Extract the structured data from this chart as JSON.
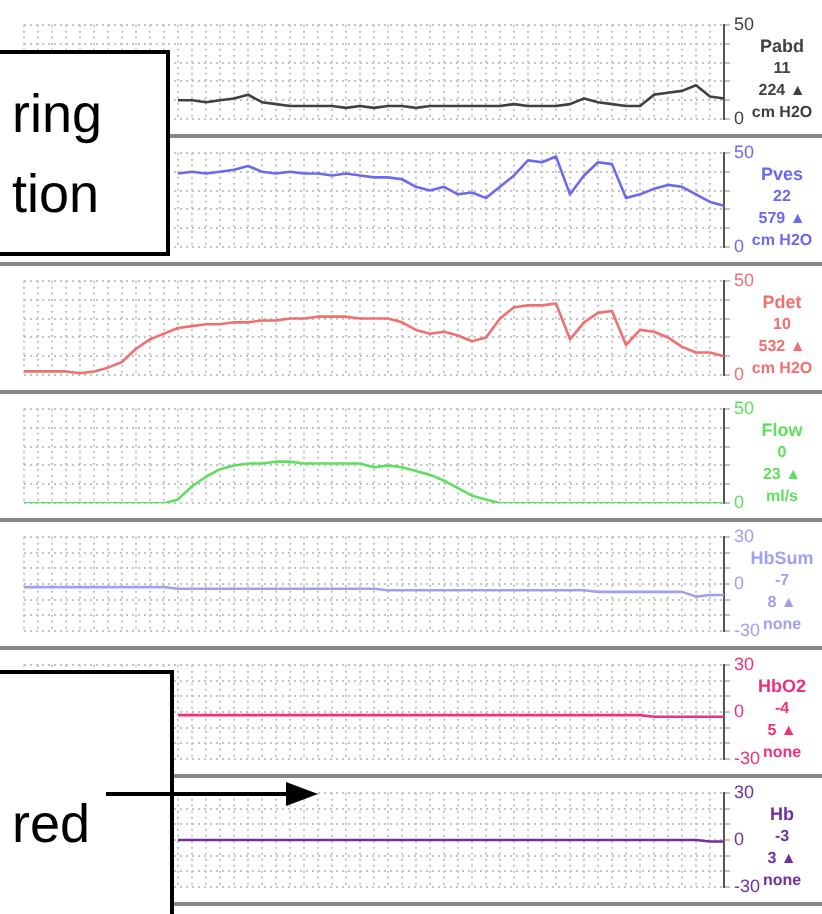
{
  "chart_data": [
    {
      "type": "line",
      "categories": [
        null,
        null,
        null,
        null,
        null,
        null,
        null,
        null,
        null,
        null,
        null,
        null,
        null,
        null,
        null,
        null,
        null,
        null,
        null,
        null,
        null,
        null,
        null,
        null,
        null,
        null,
        null,
        null,
        null,
        null,
        null,
        null,
        null,
        null,
        null,
        null,
        null,
        null,
        null,
        null,
        null,
        null,
        null,
        null,
        null,
        null,
        null,
        null,
        null,
        null,
        null
      ],
      "tick_labels": "y",
      "grid": true,
      "ylim": [
        0,
        50
      ],
      "yticks": [
        0,
        {
          "value": 10,
          "label": null
        },
        {
          "value": 20,
          "label": null
        },
        {
          "value": 30,
          "label": null
        },
        {
          "value": 40,
          "label": null
        },
        50
      ],
      "annotations": [
        "11",
        "224 ▲",
        "cm H2O",
        "ring",
        "tion"
      ],
      "series": [
        {
          "name": "Pabd",
          "color": "#404040",
          "values": [
            null,
            null,
            null,
            null,
            null,
            null,
            null,
            null,
            null,
            null,
            null,
            10,
            10,
            9,
            10,
            11,
            13,
            9,
            8,
            7,
            7,
            7,
            7,
            6,
            7,
            6,
            7,
            7,
            6,
            7,
            7,
            7,
            7,
            7,
            7,
            8,
            7,
            7,
            7,
            8,
            11,
            9,
            8,
            7,
            7,
            13,
            14,
            15,
            18,
            12,
            11
          ]
        }
      ]
    },
    {
      "type": "line",
      "categories": [
        null,
        null,
        null,
        null,
        null,
        null,
        null,
        null,
        null,
        null,
        null,
        null,
        null,
        null,
        null,
        null,
        null,
        null,
        null,
        null,
        null,
        null,
        null,
        null,
        null,
        null,
        null,
        null,
        null,
        null,
        null,
        null,
        null,
        null,
        null,
        null,
        null,
        null,
        null,
        null,
        null,
        null,
        null,
        null,
        null,
        null,
        null,
        null,
        null,
        null,
        null
      ],
      "tick_labels": "y",
      "grid": true,
      "ylim": [
        0,
        50
      ],
      "yticks": [
        0,
        {
          "value": 10,
          "label": null
        },
        {
          "value": 20,
          "label": null
        },
        {
          "value": 30,
          "label": null
        },
        {
          "value": 40,
          "label": null
        },
        50
      ],
      "annotations": [
        "22",
        "579 ▲",
        "cm H2O"
      ],
      "series": [
        {
          "name": "Pves",
          "color": "#6a6af0",
          "values": [
            null,
            null,
            null,
            null,
            null,
            null,
            null,
            null,
            null,
            null,
            null,
            39,
            40,
            39,
            40,
            41,
            43,
            40,
            39,
            40,
            39,
            39,
            38,
            39,
            38,
            37,
            37,
            36,
            32,
            30,
            32,
            28,
            29,
            26,
            32,
            38,
            46,
            45,
            48,
            28,
            38,
            45,
            44,
            26,
            28,
            31,
            33,
            32,
            28,
            24,
            22
          ]
        }
      ]
    },
    {
      "type": "line",
      "categories": [
        null,
        null,
        null,
        null,
        null,
        null,
        null,
        null,
        null,
        null,
        null,
        null,
        null,
        null,
        null,
        null,
        null,
        null,
        null,
        null,
        null,
        null,
        null,
        null,
        null,
        null,
        null,
        null,
        null,
        null,
        null,
        null,
        null,
        null,
        null,
        null,
        null,
        null,
        null,
        null,
        null,
        null,
        null,
        null,
        null,
        null,
        null,
        null,
        null,
        null,
        null
      ],
      "tick_labels": "y",
      "grid": true,
      "ylim": [
        0,
        50
      ],
      "yticks": [
        0,
        {
          "value": 10,
          "label": null
        },
        {
          "value": 20,
          "label": null
        },
        {
          "value": 30,
          "label": null
        },
        {
          "value": 40,
          "label": null
        },
        50
      ],
      "annotations": [
        "10",
        "532 ▲",
        "cm H2O"
      ],
      "series": [
        {
          "name": "Pdet",
          "color": "#f07070",
          "values": [
            2,
            2,
            2,
            2,
            1,
            2,
            4,
            7,
            14,
            19,
            22,
            25,
            26,
            27,
            27,
            28,
            28,
            29,
            29,
            30,
            30,
            31,
            31,
            31,
            30,
            30,
            30,
            28,
            24,
            22,
            23,
            21,
            18,
            20,
            30,
            36,
            37,
            37,
            38,
            19,
            28,
            33,
            34,
            16,
            24,
            23,
            20,
            15,
            12,
            12,
            10
          ]
        }
      ]
    },
    {
      "type": "line",
      "categories": [
        null,
        null,
        null,
        null,
        null,
        null,
        null,
        null,
        null,
        null,
        null,
        null,
        null,
        null,
        null,
        null,
        null,
        null,
        null,
        null,
        null,
        null,
        null,
        null,
        null,
        null,
        null,
        null,
        null,
        null,
        null,
        null,
        null,
        null,
        null,
        null,
        null,
        null,
        null,
        null,
        null,
        null,
        null,
        null,
        null,
        null,
        null,
        null,
        null,
        null,
        null
      ],
      "tick_labels": "y",
      "grid": true,
      "ylim": [
        0,
        50
      ],
      "yticks": [
        0,
        {
          "value": 10,
          "label": null
        },
        {
          "value": 20,
          "label": null
        },
        {
          "value": 30,
          "label": null
        },
        {
          "value": 40,
          "label": null
        },
        50
      ],
      "annotations": [
        "0",
        "23 ▲",
        "ml/s"
      ],
      "series": [
        {
          "name": "Flow",
          "color": "#5ee05e",
          "values": [
            0,
            0,
            0,
            0,
            0,
            0,
            0,
            0,
            0,
            0,
            0,
            2,
            9,
            14,
            18,
            20,
            21,
            21,
            22,
            22,
            21,
            21,
            21,
            21,
            21,
            19,
            20,
            19,
            17,
            15,
            12,
            8,
            4,
            2,
            0,
            0,
            0,
            0,
            0,
            0,
            0,
            0,
            0,
            0,
            0,
            0,
            0,
            0,
            0,
            0,
            0
          ]
        }
      ]
    },
    {
      "type": "line",
      "categories": [
        null,
        null,
        null,
        null,
        null,
        null,
        null,
        null,
        null,
        null,
        null,
        null,
        null,
        null,
        null,
        null,
        null,
        null,
        null,
        null,
        null,
        null,
        null,
        null,
        null,
        null,
        null,
        null,
        null,
        null,
        null,
        null,
        null,
        null,
        null,
        null,
        null,
        null,
        null,
        null,
        null,
        null,
        null,
        null,
        null,
        null,
        null,
        null,
        null,
        null,
        null
      ],
      "tick_labels": "y",
      "grid": true,
      "ylim": [
        -30,
        30
      ],
      "yticks": [
        -30,
        {
          "value": -20,
          "label": null
        },
        {
          "value": -10,
          "label": null
        },
        0,
        {
          "value": 10,
          "label": null
        },
        {
          "value": 20,
          "label": null
        },
        30
      ],
      "annotations": [
        "-7",
        "8 ▲",
        "none"
      ],
      "series": [
        {
          "name": "HbSum",
          "color": "#a0a0f0",
          "values": [
            -2,
            -2,
            -2,
            -2,
            -2,
            -2,
            -2,
            -2,
            -2,
            -2,
            -2,
            -3,
            -3,
            -3,
            -3,
            -3,
            -3,
            -3,
            -3,
            -3,
            -3,
            -3,
            -3,
            -3,
            -3,
            -3,
            -4,
            -4,
            -4,
            -4,
            -4,
            -4,
            -4,
            -4,
            -4,
            -4,
            -4,
            -4,
            -4,
            -4,
            -4,
            -5,
            -5,
            -5,
            -5,
            -5,
            -5,
            -5,
            -8,
            -7,
            -7
          ]
        }
      ]
    },
    {
      "type": "line",
      "categories": [
        null,
        null,
        null,
        null,
        null,
        null,
        null,
        null,
        null,
        null,
        null,
        null,
        null,
        null,
        null,
        null,
        null,
        null,
        null,
        null,
        null,
        null,
        null,
        null,
        null,
        null,
        null,
        null,
        null,
        null,
        null,
        null,
        null,
        null,
        null,
        null,
        null,
        null,
        null,
        null,
        null,
        null,
        null,
        null,
        null,
        null,
        null,
        null,
        null,
        null,
        null
      ],
      "tick_labels": "y",
      "grid": true,
      "ylim": [
        -30,
        30
      ],
      "yticks": [
        -30,
        {
          "value": -20,
          "label": null
        },
        {
          "value": -10,
          "label": null
        },
        0,
        {
          "value": 10,
          "label": null
        },
        {
          "value": 20,
          "label": null
        },
        30
      ],
      "annotations": [
        "-4",
        "5 ▲",
        "none"
      ],
      "series": [
        {
          "name": "HbO2",
          "color": "#f0307a",
          "values": [
            null,
            null,
            null,
            null,
            null,
            null,
            null,
            null,
            null,
            null,
            null,
            -2,
            -2,
            -2,
            -2,
            -2,
            -2,
            -2,
            -2,
            -2,
            -2,
            -2,
            -2,
            -2,
            -2,
            -2,
            -2,
            -2,
            -2,
            -2,
            -2,
            -2,
            -2,
            -2,
            -2,
            -2,
            -2,
            -2,
            -2,
            -2,
            -2,
            -2,
            -2,
            -2,
            -2,
            -3,
            -3,
            -3,
            -3,
            -3,
            -3
          ]
        }
      ]
    },
    {
      "type": "line",
      "categories": [
        null,
        null,
        null,
        null,
        null,
        null,
        null,
        null,
        null,
        null,
        null,
        null,
        null,
        null,
        null,
        null,
        null,
        null,
        null,
        null,
        null,
        null,
        null,
        null,
        null,
        null,
        null,
        null,
        null,
        null,
        null,
        null,
        null,
        null,
        null,
        null,
        null,
        null,
        null,
        null,
        null,
        null,
        null,
        null,
        null,
        null,
        null,
        null,
        null,
        null,
        null
      ],
      "tick_labels": "y",
      "grid": true,
      "ylim": [
        -30,
        30
      ],
      "yticks": [
        -30,
        {
          "value": -20,
          "label": null
        },
        {
          "value": -10,
          "label": null
        },
        0,
        {
          "value": 10,
          "label": null
        },
        {
          "value": 20,
          "label": null
        },
        30
      ],
      "annotations": [
        "-3",
        "3 ▲",
        "none",
        "red"
      ],
      "series": [
        {
          "name": "Hb",
          "color": "#7030a0",
          "values": [
            null,
            null,
            null,
            null,
            null,
            null,
            null,
            null,
            null,
            null,
            null,
            0,
            0,
            0,
            0,
            0,
            0,
            0,
            0,
            0,
            0,
            0,
            0,
            0,
            0,
            0,
            0,
            0,
            0,
            0,
            0,
            0,
            0,
            0,
            0,
            0,
            0,
            0,
            0,
            0,
            0,
            0,
            0,
            0,
            0,
            0,
            0,
            0,
            0,
            -1,
            -1
          ]
        }
      ]
    }
  ]
}
